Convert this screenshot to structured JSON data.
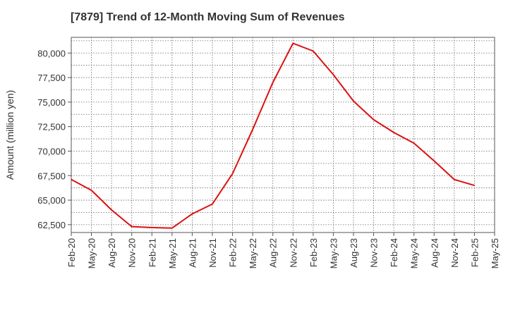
{
  "chart_data": {
    "type": "line",
    "title": "[7879]  Trend of 12-Month Moving Sum of Revenues",
    "ylabel": "Amount (million yen)",
    "xlabel": "",
    "ylim": [
      61700,
      81600
    ],
    "grid": true,
    "legend": "none",
    "x_ticks": [
      "Feb-20",
      "May-20",
      "Aug-20",
      "Nov-20",
      "Feb-21",
      "May-21",
      "Aug-21",
      "Nov-21",
      "Feb-22",
      "May-22",
      "Aug-22",
      "Nov-22",
      "Feb-23",
      "May-23",
      "Aug-23",
      "Nov-23",
      "Feb-24",
      "May-24",
      "Aug-24",
      "Nov-24",
      "Feb-25",
      "May-25"
    ],
    "y_ticks": [
      62500,
      65000,
      67500,
      70000,
      72500,
      75000,
      77500,
      80000
    ],
    "y_tick_labels": [
      "62,500",
      "65,000",
      "67,500",
      "70,000",
      "72,500",
      "75,000",
      "77,500",
      "80,000"
    ],
    "series": [
      {
        "color": "#dd1111",
        "x": [
          "Feb-20",
          "May-20",
          "Aug-20",
          "Nov-20",
          "Feb-21",
          "May-21",
          "Aug-21",
          "Nov-21",
          "Feb-22",
          "May-22",
          "Aug-22",
          "Nov-22",
          "Feb-23",
          "May-23",
          "Aug-23",
          "Nov-23",
          "Feb-24",
          "May-24",
          "Aug-24",
          "Nov-24",
          "Feb-25"
        ],
        "values": [
          67100,
          66000,
          64000,
          62300,
          62200,
          62150,
          63600,
          64600,
          67700,
          72200,
          77000,
          81000,
          80200,
          77800,
          75100,
          73200,
          71900,
          70800,
          69000,
          67100,
          66500
        ]
      }
    ]
  }
}
